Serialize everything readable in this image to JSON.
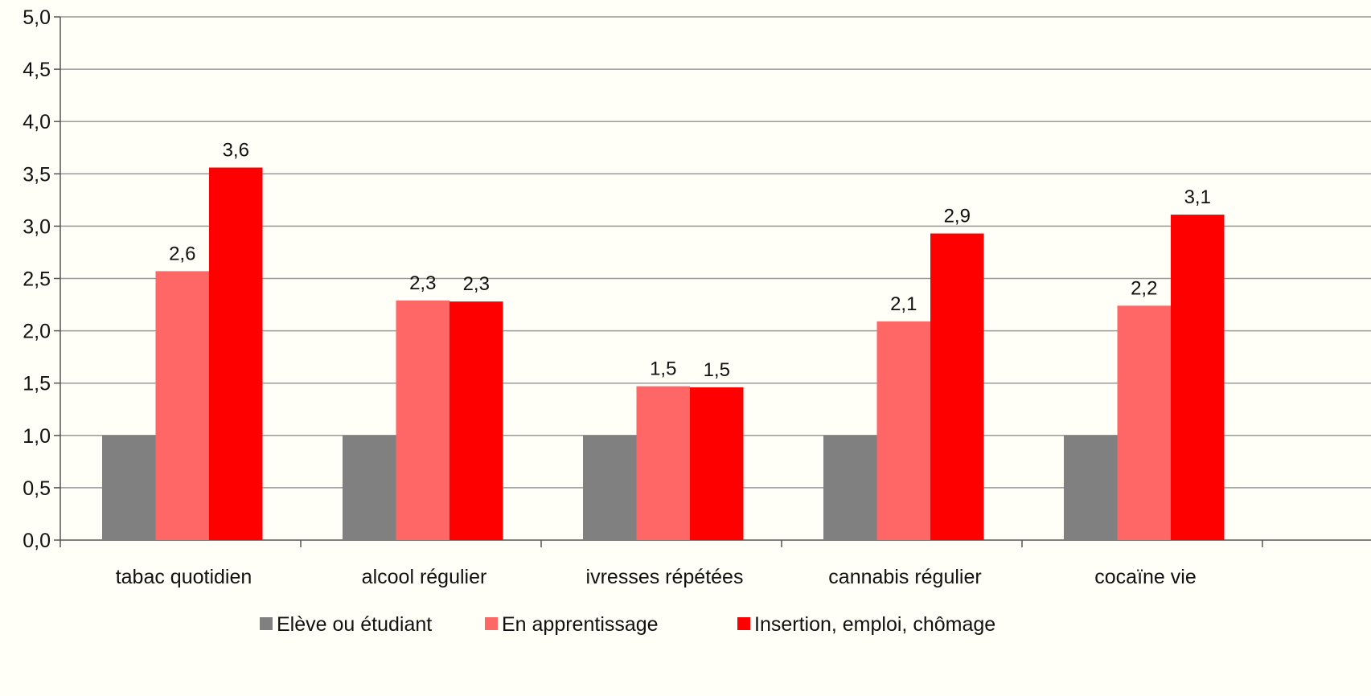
{
  "chart_data": {
    "type": "bar",
    "categories": [
      "tabac quotidien",
      "alcool régulier",
      "ivresses répétées",
      "cannabis régulier",
      "cocaïne vie"
    ],
    "series": [
      {
        "name": "Elève ou étudiant",
        "color": "#808080",
        "values": [
          1.0,
          1.0,
          1.0,
          1.0,
          1.0
        ],
        "labels": [
          "",
          "",
          "",
          "",
          ""
        ]
      },
      {
        "name": "En apprentissage",
        "color": "#ff6666",
        "values": [
          2.57,
          2.29,
          1.47,
          2.09,
          2.24
        ],
        "labels": [
          "2,6",
          "2,3",
          "1,5",
          "2,1",
          "2,2"
        ]
      },
      {
        "name": "Insertion, emploi, chômage",
        "color": "#ff0000",
        "values": [
          3.56,
          2.28,
          1.46,
          2.93,
          3.11
        ],
        "labels": [
          "3,6",
          "2,3",
          "1,5",
          "2,9",
          "3,1"
        ]
      }
    ],
    "ylim": [
      0,
      5
    ],
    "yticks": [
      "0,0",
      "0,5",
      "1,0",
      "1,5",
      "2,0",
      "2,5",
      "3,0",
      "3,5",
      "4,0",
      "4,5",
      "5,0"
    ],
    "grid": true,
    "legend_position": "bottom",
    "title": "",
    "xlabel": "",
    "ylabel": ""
  }
}
